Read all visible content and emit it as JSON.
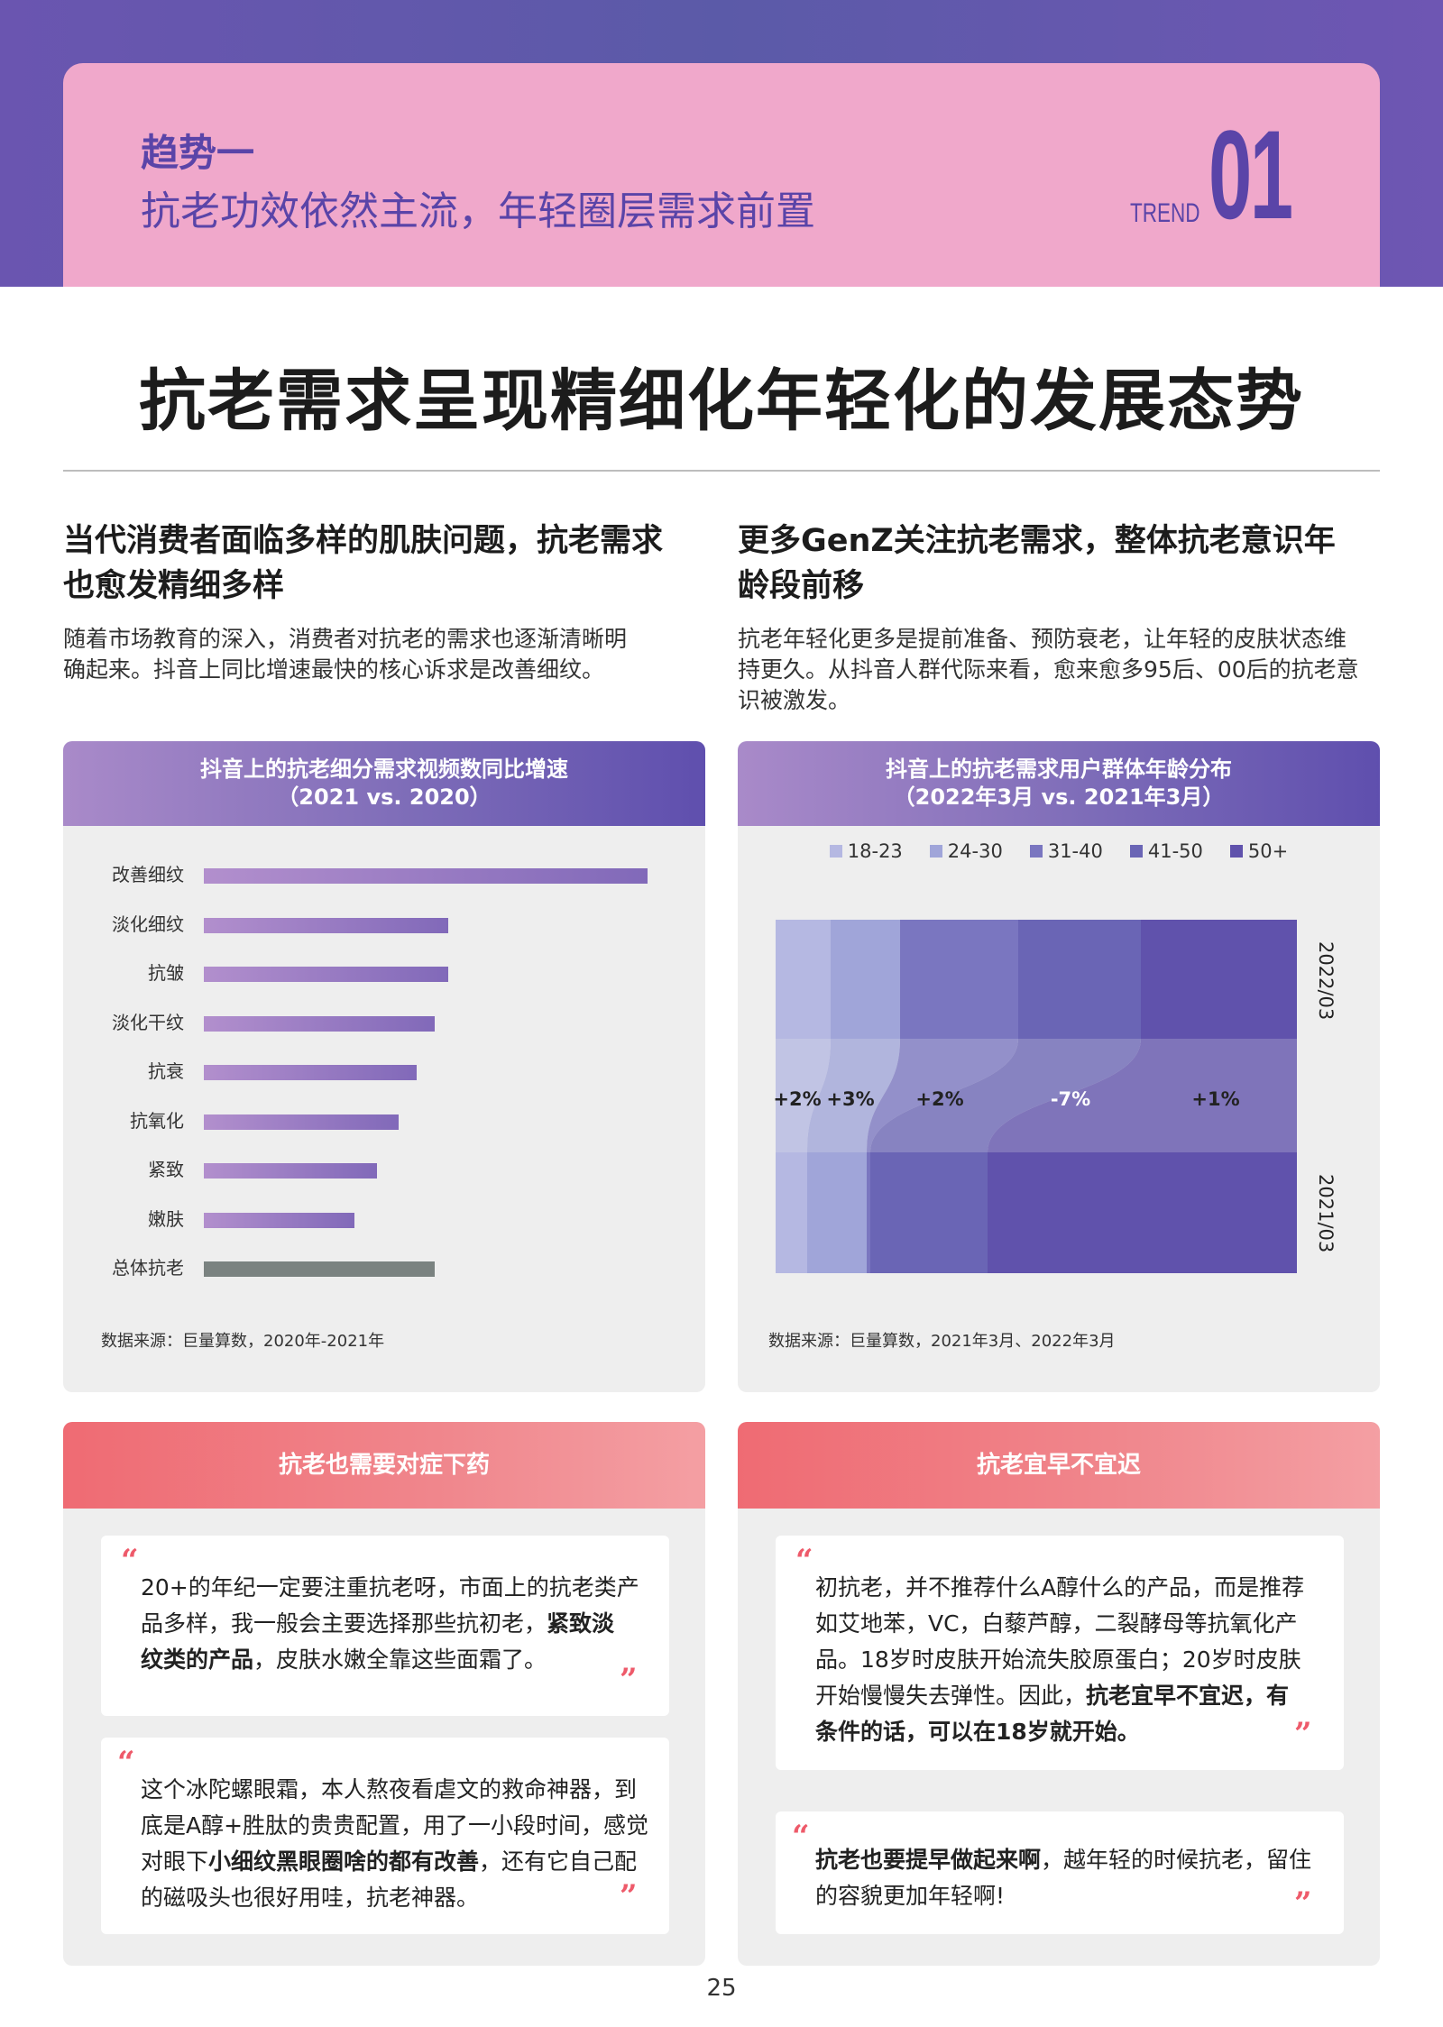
{
  "header": {
    "trend_label": "趋势一",
    "trend_subtitle": "抗老功效依然主流，年轻圈层需求前置",
    "trend_word": "TREND",
    "trend_number": "01"
  },
  "main_title": "抗老需求呈现精细化年轻化的发展态势",
  "columns": {
    "left": {
      "heading_line1": "当代消费者面临多样的肌肤问题，抗老需求",
      "heading_line2": "也愈发精细多样",
      "body_line1": "随着市场教育的深入，消费者对抗老的需求也逐渐清晰明",
      "body_line2": "确起来。抖音上同比增速最快的核心诉求是改善细纹。"
    },
    "right": {
      "heading_line1": "更多GenZ关注抗老需求，整体抗老意识年",
      "heading_line2": "龄段前移",
      "body_line1": "抗老年轻化更多是提前准备、预防衰老，让年轻的皮肤状态维",
      "body_line2": "持更久。从抖音人群代际来看，愈来愈多95后、00后的抗老意",
      "body_line3": "识被激发。"
    }
  },
  "chart_data": [
    {
      "type": "bar",
      "title": "抖音上的抗老细分需求视频数同比增速",
      "subtitle": "（2021 vs. 2020）",
      "categories": [
        "改善细纹",
        "淡化细纹",
        "抗皱",
        "淡化干纹",
        "抗衰",
        "抗氧化",
        "紧致",
        "嫩肤",
        "总体抗老"
      ],
      "values": [
        100,
        55,
        55,
        52,
        48,
        44,
        39,
        34,
        52
      ],
      "value_unit": "relative (no axis printed)",
      "source": "数据来源：巨量算数，2020年-2021年"
    },
    {
      "type": "area",
      "title": "抖音上的抗老需求用户群体年龄分布",
      "subtitle": "（2022年3月 vs. 2021年3月）",
      "legend": [
        "18-23",
        "24-30",
        "31-40",
        "41-50",
        "50+"
      ],
      "colors": [
        "#b5b8e2",
        "#a0a5d9",
        "#7a76c0",
        "#6a65b5",
        "#6052ac"
      ],
      "x": [
        "2021/03",
        "2022/03"
      ],
      "changes": [
        "+2%",
        "+3%",
        "+2%",
        "-7%",
        "+1%"
      ],
      "source": "数据来源：巨量算数，2021年3月、2022年3月"
    }
  ],
  "quotes": {
    "left_title": "抗老也需要对症下药",
    "right_title": "抗老宜早不宜迟",
    "l1": {
      "line1": "20+的年纪一定要注重抗老呀，市面上的抗老类产",
      "line2": "品多样，我一般会主要选择那些抗初老，",
      "line2_bold": "紧致淡",
      "line3_bold": "纹类的产品",
      "line3": "，皮肤水嫩全靠这些面霜了。"
    },
    "l2": {
      "line1": "这个冰陀螺眼霜，本人熬夜看虐文的救命神器，到",
      "line2": "底是A醇+胜肽的贵贵配置，用了一小段时间，感觉",
      "line3": "对眼下",
      "line3_bold": "小细纹黑眼圈啥的都有改善",
      "line3_tail": "，还有它自己配",
      "line4": "的磁吸头也很好用哇，抗老神器。"
    },
    "r1": {
      "line1": "初抗老，并不推荐什么A醇什么的产品，而是推荐",
      "line2": "如艾地苯，VC，白藜芦醇，二裂酵母等抗氧化产",
      "line3": "品。18岁时皮肤开始流失胶原蛋白；20岁时皮肤",
      "line4": "开始慢慢失去弹性。因此，",
      "line4_bold": "抗老宜早不宜迟，有",
      "line5_bold": "条件的话，可以在18岁就开始。"
    },
    "r2": {
      "line1_bold": "抗老也要提早做起来啊",
      "line1": "，越年轻的时候抗老，留住",
      "line2": "的容貌更加年轻啊!"
    }
  },
  "page_number": "25"
}
